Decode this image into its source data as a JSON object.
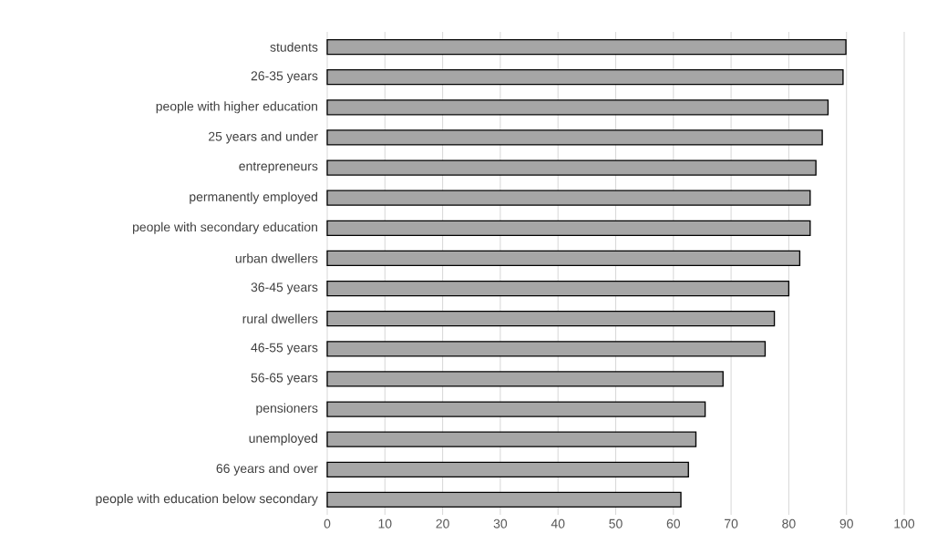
{
  "chart_data": {
    "type": "bar",
    "orientation": "horizontal",
    "categories": [
      "students",
      "26-35 years",
      "people with higher education",
      "25 years and under",
      "entrepreneurs",
      "permanently employed",
      "people with secondary education",
      "urban dwellers",
      "36-45 years",
      "rural dwellers",
      "46-55 years",
      "56-65 years",
      "pensioners",
      "unemployed",
      "66 years and over",
      "people with education below secondary"
    ],
    "values": [
      89.9,
      89.4,
      86.8,
      85.8,
      84.7,
      83.7,
      83.7,
      81.9,
      80.0,
      77.5,
      75.9,
      68.6,
      65.5,
      63.9,
      62.6,
      61.3
    ],
    "color": "#a6a6a6",
    "xlim": [
      0,
      100
    ],
    "xticks": [
      0,
      10,
      20,
      30,
      40,
      50,
      60,
      70,
      80,
      90,
      100
    ],
    "grid": "x"
  }
}
